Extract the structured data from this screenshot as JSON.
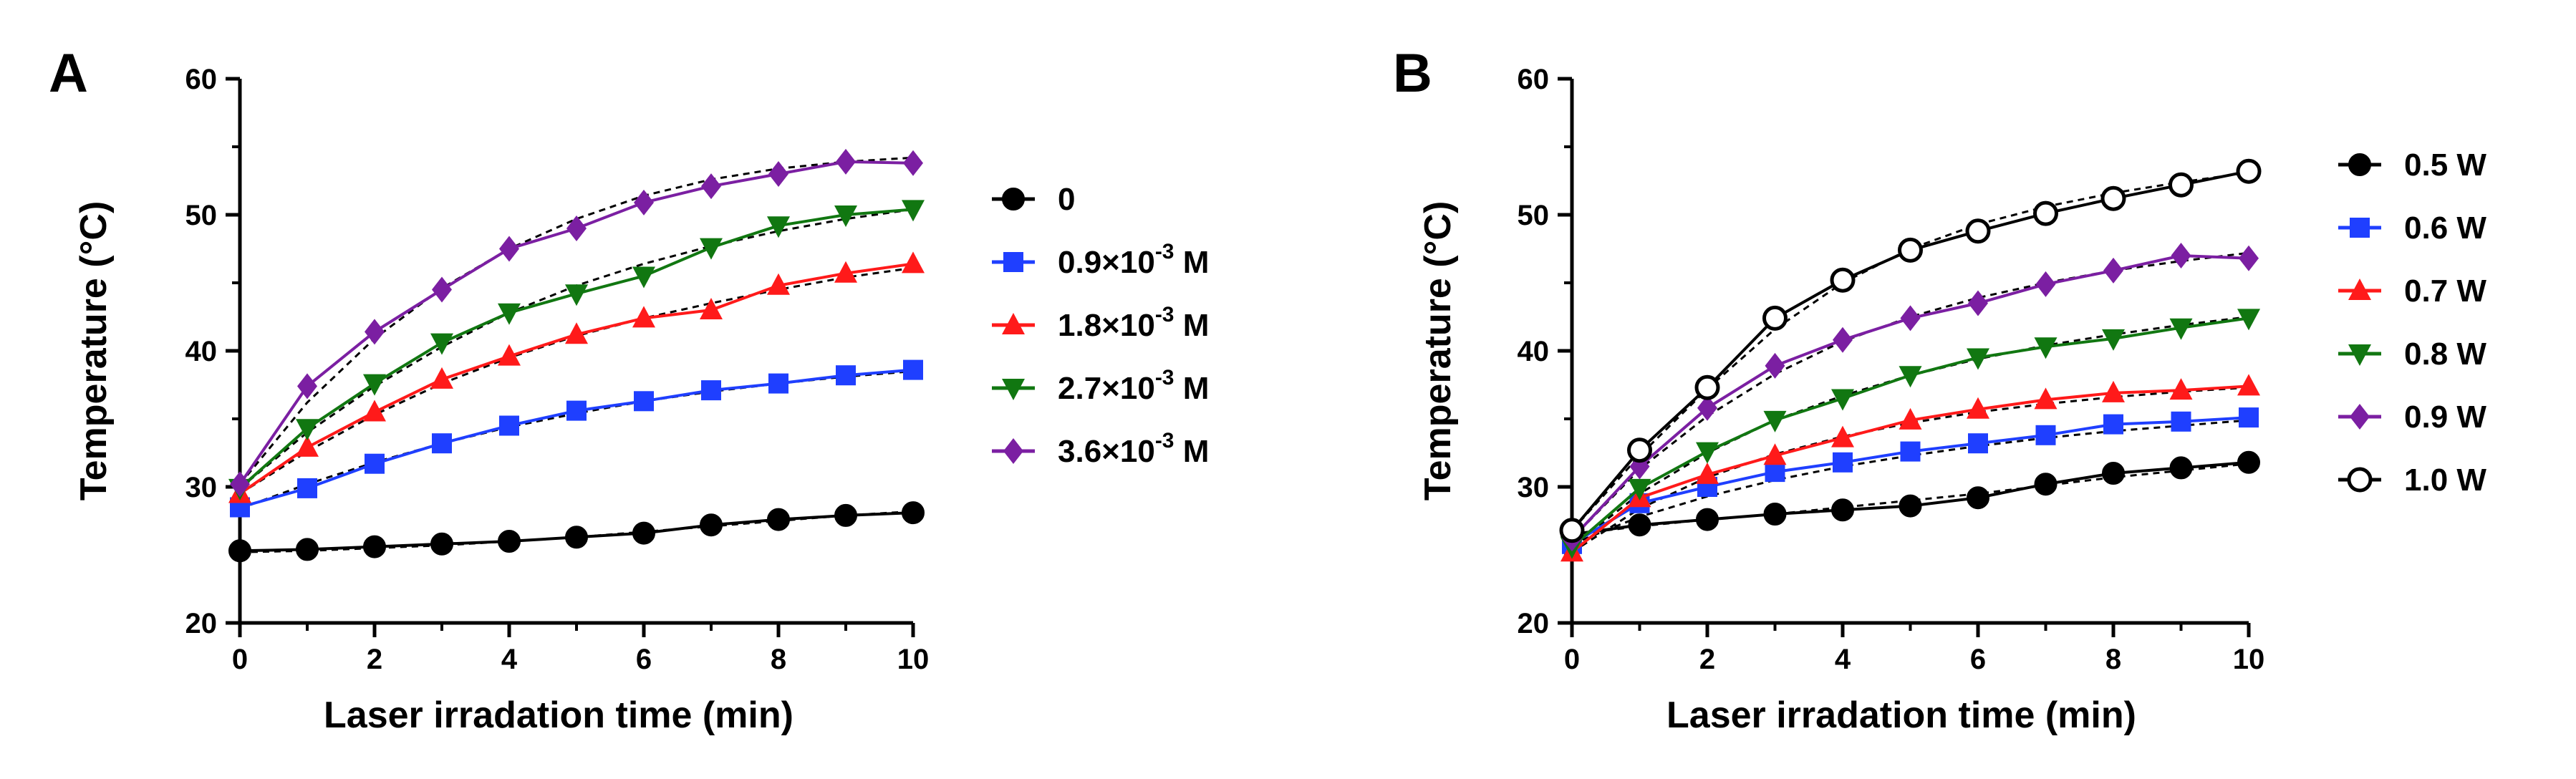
{
  "chart_data": [
    {
      "panel_label": "A",
      "type": "line",
      "xlabel": "Laser irradation time (min)",
      "ylabel": "Temperature (°C)",
      "xlim": [
        0,
        10
      ],
      "ylim": [
        20,
        60
      ],
      "xticks": [
        0,
        2,
        4,
        6,
        8,
        10
      ],
      "yticks": [
        20,
        30,
        40,
        50,
        60
      ],
      "grid": false,
      "legend_position": "right",
      "x": [
        0,
        1,
        2,
        3,
        4,
        5,
        6,
        7,
        8,
        9,
        10
      ],
      "series": [
        {
          "name": "0",
          "legend": {
            "base": "0"
          },
          "color": "#000000",
          "marker": "circle",
          "values": [
            25.3,
            25.4,
            25.6,
            25.8,
            26.0,
            26.3,
            26.6,
            27.2,
            27.6,
            27.9,
            28.1
          ],
          "fit": [
            25.2,
            25.3,
            25.5,
            25.7,
            26.0,
            26.3,
            26.7,
            27.1,
            27.5,
            27.9,
            28.2
          ]
        },
        {
          "name": "0.9×10-3 M",
          "legend": {
            "base": "0.9×10",
            "exp": "-3",
            "unit": " M"
          },
          "color": "#1f3fff",
          "marker": "square",
          "values": [
            28.5,
            29.9,
            31.7,
            33.2,
            34.5,
            35.6,
            36.3,
            37.1,
            37.6,
            38.2,
            38.6
          ],
          "fit": [
            28.4,
            30.2,
            31.8,
            33.2,
            34.4,
            35.4,
            36.3,
            37.0,
            37.6,
            38.1,
            38.5
          ]
        },
        {
          "name": "1.8×10-3 M",
          "legend": {
            "base": "1.8×10",
            "exp": "-3",
            "unit": " M"
          },
          "color": "#ff1a1a",
          "marker": "triangle",
          "values": [
            29.5,
            32.9,
            35.5,
            37.9,
            39.6,
            41.2,
            42.4,
            43.0,
            44.8,
            45.7,
            46.4
          ],
          "fit": [
            29.5,
            32.6,
            35.3,
            37.6,
            39.5,
            41.1,
            42.4,
            43.5,
            44.5,
            45.4,
            46.1
          ]
        },
        {
          "name": "2.7×10-3 M",
          "legend": {
            "base": "2.7×10",
            "exp": "-3",
            "unit": " M"
          },
          "color": "#117711",
          "marker": "triangle-down",
          "values": [
            29.9,
            34.3,
            37.6,
            40.6,
            42.8,
            44.2,
            45.5,
            47.6,
            49.2,
            50.0,
            50.4
          ],
          "fit": [
            29.9,
            34.0,
            37.4,
            40.3,
            42.8,
            44.8,
            46.4,
            47.7,
            48.8,
            49.7,
            50.4
          ]
        },
        {
          "name": "3.6×10-3 M",
          "legend": {
            "base": "3.6×10",
            "exp": "-3",
            "unit": " M"
          },
          "color": "#7b1fa2",
          "marker": "diamond",
          "values": [
            30.2,
            37.4,
            41.4,
            44.5,
            47.5,
            49.0,
            50.9,
            52.1,
            53.0,
            53.9,
            53.8
          ],
          "fit": [
            30.2,
            36.2,
            40.9,
            44.6,
            47.5,
            49.7,
            51.4,
            52.6,
            53.4,
            53.9,
            54.2
          ]
        }
      ]
    },
    {
      "panel_label": "B",
      "type": "line",
      "xlabel": "Laser irradation time (min)",
      "ylabel": "Temperature (°C)",
      "xlim": [
        0,
        10
      ],
      "ylim": [
        20,
        60
      ],
      "xticks": [
        0,
        2,
        4,
        6,
        8,
        10
      ],
      "yticks": [
        20,
        30,
        40,
        50,
        60
      ],
      "grid": false,
      "legend_position": "right",
      "x": [
        0,
        1,
        2,
        3,
        4,
        5,
        6,
        7,
        8,
        9,
        10
      ],
      "series": [
        {
          "name": "0.5 W",
          "legend": {
            "base": "0.5 W"
          },
          "color": "#000000",
          "marker": "circle",
          "values": [
            26.5,
            27.2,
            27.6,
            28.0,
            28.3,
            28.6,
            29.2,
            30.2,
            31.0,
            31.4,
            31.8
          ],
          "fit": [
            26.5,
            27.1,
            27.6,
            28.0,
            28.5,
            29.0,
            29.5,
            30.1,
            30.7,
            31.2,
            31.7
          ]
        },
        {
          "name": "0.6 W",
          "legend": {
            "base": "0.6 W"
          },
          "color": "#1f3fff",
          "marker": "square",
          "values": [
            25.8,
            28.8,
            30.0,
            31.1,
            31.8,
            32.6,
            33.2,
            33.8,
            34.6,
            34.8,
            35.1
          ],
          "fit": [
            25.8,
            27.8,
            29.3,
            30.5,
            31.5,
            32.3,
            33.0,
            33.6,
            34.1,
            34.5,
            34.9
          ]
        },
        {
          "name": "0.7 W",
          "legend": {
            "base": "0.7 W"
          },
          "color": "#ff1a1a",
          "marker": "triangle",
          "values": [
            25.2,
            29.2,
            30.9,
            32.3,
            33.6,
            34.9,
            35.7,
            36.4,
            36.9,
            37.1,
            37.4
          ],
          "fit": [
            25.2,
            28.4,
            30.7,
            32.4,
            33.7,
            34.7,
            35.5,
            36.1,
            36.6,
            37.0,
            37.3
          ]
        },
        {
          "name": "0.8 W",
          "legend": {
            "base": "0.8 W"
          },
          "color": "#117711",
          "marker": "triangle-down",
          "values": [
            25.6,
            29.9,
            32.6,
            34.9,
            36.5,
            38.2,
            39.5,
            40.3,
            40.9,
            41.7,
            42.4
          ],
          "fit": [
            25.6,
            29.5,
            32.5,
            34.9,
            36.7,
            38.2,
            39.4,
            40.4,
            41.2,
            41.9,
            42.5
          ]
        },
        {
          "name": "0.9 W",
          "legend": {
            "base": "0.9 W"
          },
          "color": "#7b1fa2",
          "marker": "diamond",
          "values": [
            26.2,
            31.5,
            35.8,
            38.9,
            40.8,
            42.4,
            43.5,
            44.9,
            45.9,
            47.0,
            46.8
          ],
          "fit": [
            26.2,
            31.3,
            35.2,
            38.3,
            40.7,
            42.5,
            43.9,
            45.0,
            45.9,
            46.6,
            47.2
          ]
        },
        {
          "name": "1.0 W",
          "legend": {
            "base": "1.0 W"
          },
          "color": "#000000",
          "marker": "circle-open",
          "values": [
            26.8,
            32.7,
            37.3,
            42.4,
            45.2,
            47.4,
            48.8,
            50.1,
            51.2,
            52.2,
            53.2
          ],
          "fit": [
            26.8,
            32.3,
            37.2,
            41.6,
            45.0,
            47.5,
            49.3,
            50.6,
            51.6,
            52.4,
            53.1
          ]
        }
      ]
    }
  ]
}
